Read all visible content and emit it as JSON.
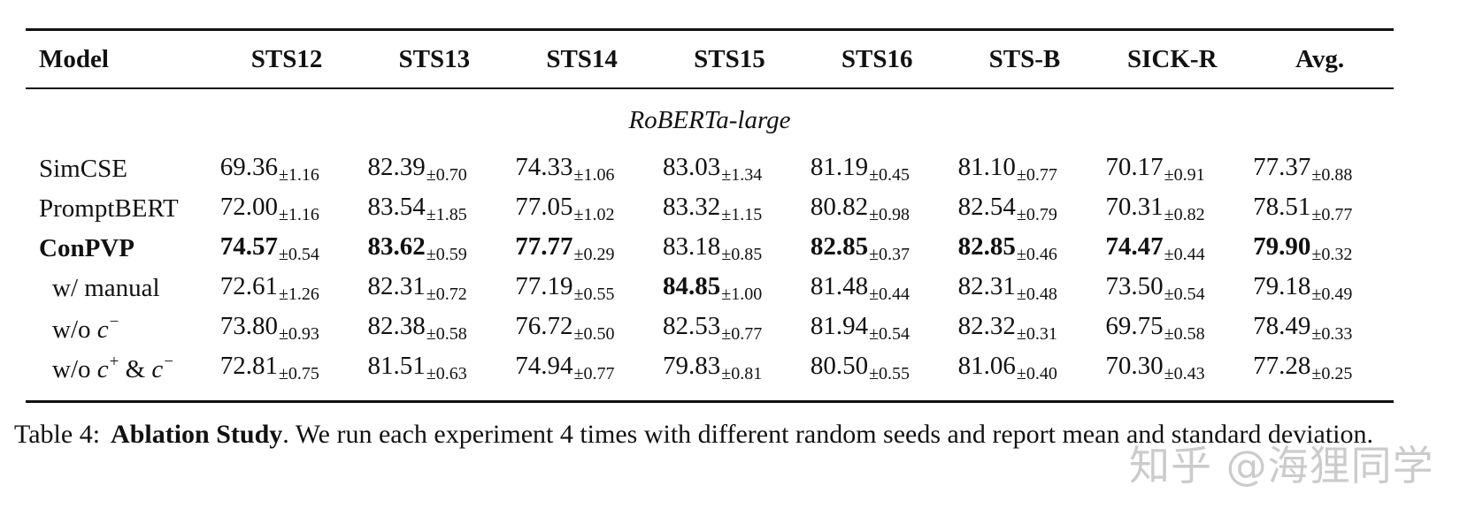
{
  "table": {
    "columns": [
      "Model",
      "STS12",
      "STS13",
      "STS14",
      "STS15",
      "STS16",
      "STS-B",
      "SICK-R",
      "Avg."
    ],
    "group_label": "RoBERTa-large",
    "rows": [
      {
        "model": "SimCSE",
        "model_bold": true,
        "cells": [
          {
            "v": "69.36",
            "s": "±1.16",
            "b": false
          },
          {
            "v": "82.39",
            "s": "±0.70",
            "b": false
          },
          {
            "v": "74.33",
            "s": "±1.06",
            "b": false
          },
          {
            "v": "83.03",
            "s": "±1.34",
            "b": false
          },
          {
            "v": "81.19",
            "s": "±0.45",
            "b": false
          },
          {
            "v": "81.10",
            "s": "±0.77",
            "b": false
          },
          {
            "v": "70.17",
            "s": "±0.91",
            "b": false
          },
          {
            "v": "77.37",
            "s": "±0.88",
            "b": false
          }
        ]
      },
      {
        "model": "PromptBERT",
        "cells": [
          {
            "v": "72.00",
            "s": "±1.16",
            "b": false
          },
          {
            "v": "83.54",
            "s": "±1.85",
            "b": false
          },
          {
            "v": "77.05",
            "s": "±1.02",
            "b": false
          },
          {
            "v": "83.32",
            "s": "±1.15",
            "b": false
          },
          {
            "v": "80.82",
            "s": "±0.98",
            "b": false
          },
          {
            "v": "82.54",
            "s": "±0.79",
            "b": false
          },
          {
            "v": "70.31",
            "s": "±0.82",
            "b": false
          },
          {
            "v": "78.51",
            "s": "±0.77",
            "b": false
          }
        ]
      },
      {
        "model": "ConPVP",
        "cells": [
          {
            "v": "74.57",
            "s": "±0.54",
            "b": true
          },
          {
            "v": "83.62",
            "s": "±0.59",
            "b": true
          },
          {
            "v": "77.77",
            "s": "±0.29",
            "b": true
          },
          {
            "v": "83.18",
            "s": "±0.85",
            "b": false
          },
          {
            "v": "82.85",
            "s": "±0.37",
            "b": true
          },
          {
            "v": "82.85",
            "s": "±0.46",
            "b": true
          },
          {
            "v": "74.47",
            "s": "±0.44",
            "b": true
          },
          {
            "v": "79.90",
            "s": "±0.32",
            "b": true
          }
        ]
      },
      {
        "model": "w/ manual",
        "cells": [
          {
            "v": "72.61",
            "s": "±1.26",
            "b": false
          },
          {
            "v": "82.31",
            "s": "±0.72",
            "b": false
          },
          {
            "v": "77.19",
            "s": "±0.55",
            "b": false
          },
          {
            "v": "84.85",
            "s": "±1.00",
            "b": true
          },
          {
            "v": "81.48",
            "s": "±0.44",
            "b": false
          },
          {
            "v": "82.31",
            "s": "±0.48",
            "b": false
          },
          {
            "v": "73.50",
            "s": "±0.54",
            "b": false
          },
          {
            "v": "79.18",
            "s": "±0.49",
            "b": false
          }
        ]
      },
      {
        "model_prefix": "w/o ",
        "model_math": "c",
        "model_sup": "−",
        "cells": [
          {
            "v": "73.80",
            "s": "±0.93",
            "b": false
          },
          {
            "v": "82.38",
            "s": "±0.58",
            "b": false
          },
          {
            "v": "76.72",
            "s": "±0.50",
            "b": false
          },
          {
            "v": "82.53",
            "s": "±0.77",
            "b": false
          },
          {
            "v": "81.94",
            "s": "±0.54",
            "b": false
          },
          {
            "v": "82.32",
            "s": "±0.31",
            "b": false
          },
          {
            "v": "69.75",
            "s": "±0.58",
            "b": false
          },
          {
            "v": "78.49",
            "s": "±0.33",
            "b": false
          }
        ]
      },
      {
        "model_prefix": "w/o ",
        "model_math": "c",
        "model_sup": "+",
        "model_mid": " & ",
        "model_math2": "c",
        "model_sup2": "−",
        "cells": [
          {
            "v": "72.81",
            "s": "±0.75",
            "b": false
          },
          {
            "v": "81.51",
            "s": "±0.63",
            "b": false
          },
          {
            "v": "74.94",
            "s": "±0.77",
            "b": false
          },
          {
            "v": "79.83",
            "s": "±0.81",
            "b": false
          },
          {
            "v": "80.50",
            "s": "±0.55",
            "b": false
          },
          {
            "v": "81.06",
            "s": "±0.40",
            "b": false
          },
          {
            "v": "70.30",
            "s": "±0.43",
            "b": false
          },
          {
            "v": "77.28",
            "s": "±0.25",
            "b": false
          }
        ]
      }
    ]
  },
  "caption": {
    "label": "Table 4:",
    "title": "Ablation Study",
    "text": ". We run each experiment 4 times with different random seeds and report mean and standard deviation."
  },
  "watermark": "知乎 @海狸同学"
}
